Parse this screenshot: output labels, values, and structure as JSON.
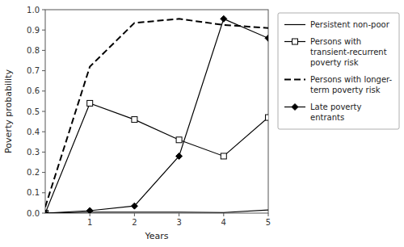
{
  "chart_data": {
    "type": "line",
    "x_label": "Years",
    "y_label": "Poverty probability",
    "x": [
      0,
      1,
      2,
      3,
      4,
      5
    ],
    "xlim": [
      0,
      5
    ],
    "ylim": [
      0,
      1
    ],
    "xticks": [
      1,
      2,
      3,
      4,
      5
    ],
    "yticks": [
      {
        "value": 0,
        "label": "0.0"
      },
      0.1,
      0.2,
      0.3,
      0.4,
      0.5,
      0.6,
      0.7,
      0.8,
      0.9,
      {
        "value": 1,
        "label": "1.0"
      }
    ],
    "grid": false,
    "legend": "right",
    "series": [
      {
        "name": "Persistent non-poor",
        "color": "#000000",
        "marker": "none",
        "line_style": "solid",
        "values": [
          0.0,
          0.005,
          0.005,
          0.005,
          0.003,
          0.015
        ]
      },
      {
        "name": "Persons with\ntransient-recurrent\npoverty risk",
        "color": "#000000",
        "marker": "square-open",
        "line_style": "solid",
        "values": [
          0.0,
          0.54,
          0.46,
          0.36,
          0.28,
          0.47
        ]
      },
      {
        "name": "Persons with longer-\nterm poverty risk",
        "color": "#000000",
        "marker": "none",
        "line_style": "dashed",
        "values": [
          0.03,
          0.72,
          0.935,
          0.955,
          0.925,
          0.91
        ]
      },
      {
        "name": "Late poverty\nentrants",
        "color": "#000000",
        "marker": "diamond",
        "line_style": "solid",
        "values": [
          0.0,
          0.012,
          0.035,
          0.28,
          0.955,
          0.86
        ]
      }
    ]
  }
}
